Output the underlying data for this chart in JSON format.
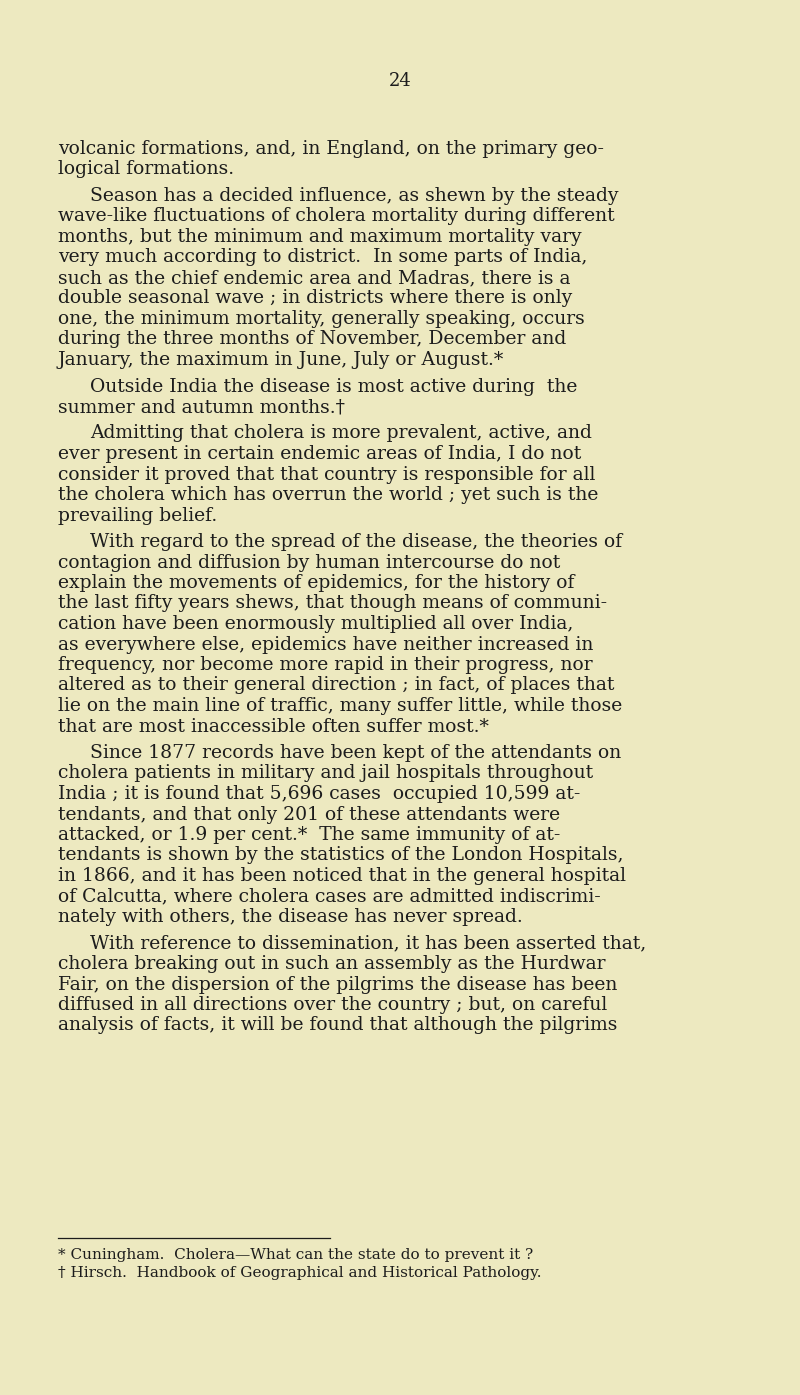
{
  "background_color": "#ede9c0",
  "page_number": "24",
  "text_color": "#1c1c1c",
  "body_fontsize": 13.5,
  "footnote_fontsize": 11.0,
  "page_num_fontsize": 13.0,
  "paragraphs": [
    {
      "indent": false,
      "lines": [
        "volcanic formations, and, in England, on the primary geo-",
        "logical formations."
      ]
    },
    {
      "indent": true,
      "lines": [
        "Season has a decided influence, as shewn by the steady",
        "wave-like fluctuations of cholera mortality during different",
        "months, but the minimum and maximum mortality vary",
        "very much according to district.  In some parts of India,",
        "such as the chief endemic area and Madras, there is a",
        "double seasonal wave ; in districts where there is only",
        "one, the minimum mortality, generally speaking, occurs",
        "during the three months of November, December and",
        "January, the maximum in June, July or August.*"
      ]
    },
    {
      "indent": true,
      "lines": [
        "Outside India the disease is most active during  the",
        "summer and autumn months.†"
      ]
    },
    {
      "indent": true,
      "lines": [
        "Admitting that cholera is more prevalent, active, and",
        "ever present in certain endemic areas of India, I do not",
        "consider it proved that that country is responsible for all",
        "the cholera which has overrun the world ; yet such is the",
        "prevailing belief."
      ]
    },
    {
      "indent": true,
      "lines": [
        "With regard to the spread of the disease, the theories of",
        "contagion and diffusion by human intercourse do not",
        "explain the movements of epidemics, for the history of",
        "the last fifty years shews, that though means of communi-",
        "cation have been enormously multiplied all over India,",
        "as everywhere else, epidemics have neither increased in",
        "frequency, nor become more rapid in their progress, nor",
        "altered as to their general direction ; in fact, of places that",
        "lie on the main line of traffic, many suffer little, while those",
        "that are most inaccessible often suffer most.*"
      ]
    },
    {
      "indent": true,
      "lines": [
        "Since 1877 records have been kept of the attendants on",
        "cholera patients in military and jail hospitals throughout",
        "India ; it is found that 5,696 cases  occupied 10,599 at-",
        "tendants, and that only 201 of these attendants were",
        "attacked, or 1.9 per cent.*  The same immunity of at-",
        "tendants is shown by the statistics of the London Hospitals,",
        "in 1866, and it has been noticed that in the general hospital",
        "of Calcutta, where cholera cases are admitted indiscrimi-",
        "nately with others, the disease has never spread."
      ]
    },
    {
      "indent": true,
      "lines": [
        "With reference to dissemination, it has been asserted that,",
        "cholera breaking out in such an assembly as the Hurdwar",
        "Fair, on the dispersion of the pilgrims the disease has been",
        "diffused in all directions over the country ; but, on careful",
        "analysis of facts, it will be found that although the pilgrims"
      ]
    }
  ],
  "footnotes": [
    "* Cuningham.  Cholera—What can the state do to prevent it ?",
    "† Hirsch.  Handbook of Geographical and Historical Pathology."
  ]
}
